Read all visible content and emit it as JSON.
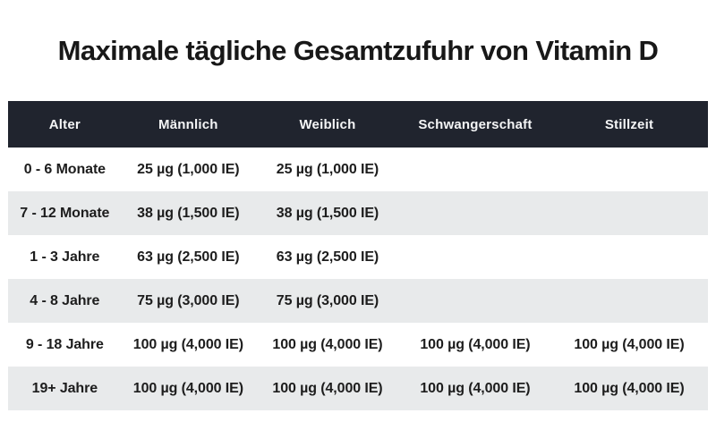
{
  "title": "Maximale tägliche Gesamtzufuhr von Vitamin D",
  "chart_data": {
    "type": "table",
    "title": "Maximale tägliche Gesamtzufuhr von Vitamin D",
    "columns": [
      "Alter",
      "Männlich",
      "Weiblich",
      "Schwangerschaft",
      "Stillzeit"
    ],
    "rows": [
      [
        "0 - 6 Monate",
        "25 µg (1,000 IE)",
        "25 µg (1,000 IE)",
        "",
        ""
      ],
      [
        "7 - 12 Monate",
        "38 µg (1,500 IE)",
        "38 µg (1,500 IE)",
        "",
        ""
      ],
      [
        "1 - 3 Jahre",
        "63 µg (2,500 IE)",
        "63 µg (2,500 IE)",
        "",
        ""
      ],
      [
        "4 - 8 Jahre",
        "75 µg (3,000 IE)",
        "75 µg (3,000 IE)",
        "",
        ""
      ],
      [
        "9 - 18 Jahre",
        "100 µg (4,000 IE)",
        "100 µg (4,000 IE)",
        "100 µg (4,000 IE)",
        "100 µg (4,000 IE)"
      ],
      [
        "19+ Jahre",
        "100 µg (4,000 IE)",
        "100 µg (4,000 IE)",
        "100 µg (4,000 IE)",
        "100 µg (4,000 IE)"
      ]
    ],
    "units": {
      "amount": "µg",
      "equivalent": "IE"
    },
    "values_mcg_per_day": [
      25,
      38,
      63,
      75,
      100,
      100
    ],
    "values_ie_per_day": [
      1000,
      1500,
      2500,
      3000,
      4000,
      4000
    ],
    "layout": {
      "zebra_striping": true,
      "header_position": "top",
      "grid": false
    }
  },
  "colors": {
    "page_bg": "#ffffff",
    "header_bg": "#20242e",
    "header_text": "#f4f5f6",
    "row_alt_bg": "#e8eaeb",
    "row_bg": "#ffffff",
    "body_text": "#1d1d1d",
    "title_text": "#181818"
  }
}
